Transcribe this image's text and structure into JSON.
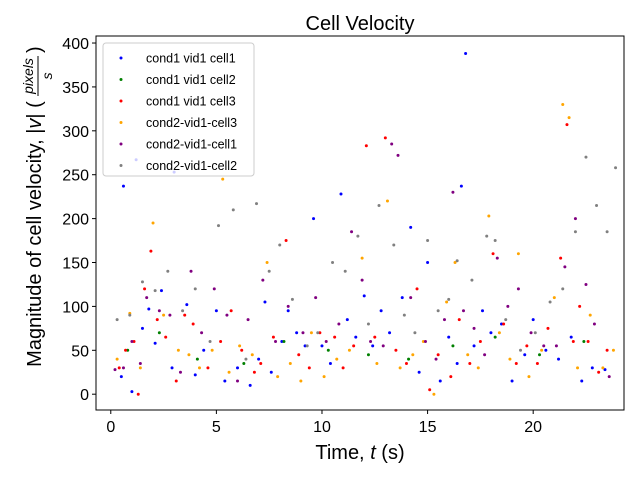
{
  "chart_data": {
    "type": "scatter",
    "title": "Cell Velocity",
    "xlabel_main": "Time, ",
    "xlabel_var": "t",
    "xlabel_unit": " (s)",
    "ylabel_main": "Magnitude of cell velocity, |",
    "ylabel_var": "v",
    "ylabel_close": "| (",
    "ylabel_frac_num": "pixels",
    "ylabel_frac_den": "s",
    "ylabel_end": ")",
    "xlim": [
      -0.7,
      24.3
    ],
    "ylim": [
      -18,
      408
    ],
    "xticks": [
      0,
      5,
      10,
      15,
      20
    ],
    "yticks": [
      0,
      50,
      100,
      150,
      200,
      250,
      300,
      350,
      400
    ],
    "legend_position": "upper-left",
    "series": [
      {
        "name": "cond1 vid1 cell1",
        "color": "#0000ff",
        "x": [
          0.5,
          0.6,
          1.0,
          1.2,
          1.5,
          1.8,
          2.1,
          2.4,
          2.9,
          3.0,
          3.6,
          4.0,
          4.4,
          5.0,
          5.4,
          6.0,
          6.6,
          7.0,
          7.3,
          7.6,
          8.1,
          8.4,
          8.8,
          9.2,
          9.6,
          10.0,
          10.4,
          10.9,
          11.2,
          11.6,
          12.0,
          12.4,
          12.8,
          13.2,
          13.8,
          14.2,
          14.6,
          15.0,
          15.6,
          16.0,
          16.4,
          16.6,
          16.8,
          17.2,
          17.6,
          18.0,
          18.5,
          19.0,
          19.6,
          20.0,
          20.6,
          21.2,
          21.8,
          22.3,
          22.8,
          23.4
        ],
        "y": [
          20,
          237,
          3,
          267,
          75,
          97,
          58,
          118,
          30,
          253,
          102,
          22,
          50,
          95,
          15,
          30,
          10,
          40,
          105,
          25,
          60,
          95,
          70,
          55,
          200,
          55,
          35,
          228,
          85,
          65,
          112,
          55,
          95,
          70,
          110,
          190,
          25,
          150,
          15,
          65,
          35,
          237,
          388,
          55,
          95,
          70,
          80,
          15,
          45,
          85,
          50,
          40,
          65,
          15,
          30,
          28
        ]
      },
      {
        "name": "cond1 vid1 cell2",
        "color": "#008000",
        "x": [
          0.8,
          2.3,
          4.1,
          6.3,
          8.2,
          10.3,
          12.2,
          14.1,
          16.2,
          18.2,
          20.3,
          22.4
        ],
        "y": [
          50,
          70,
          40,
          35,
          60,
          50,
          45,
          40,
          55,
          65,
          45,
          60
        ]
      },
      {
        "name": "cond1 vid1 cell3",
        "color": "#ff0000",
        "x": [
          0.4,
          0.7,
          1.1,
          1.3,
          1.6,
          1.9,
          2.2,
          2.6,
          3.1,
          3.5,
          3.9,
          4.6,
          5.2,
          5.7,
          6.2,
          6.8,
          7.1,
          7.7,
          8.3,
          8.9,
          9.4,
          9.9,
          10.6,
          11.0,
          11.5,
          12.1,
          12.5,
          13.0,
          13.5,
          14.0,
          14.5,
          15.1,
          15.5,
          16.1,
          16.5,
          17.0,
          17.5,
          18.1,
          18.6,
          19.2,
          19.7,
          20.2,
          20.7,
          21.3,
          21.6,
          21.9,
          22.2,
          22.6,
          23.1,
          23.5
        ],
        "y": [
          30,
          50,
          60,
          0,
          120,
          163,
          85,
          65,
          15,
          90,
          80,
          30,
          60,
          95,
          50,
          25,
          35,
          65,
          175,
          45,
          30,
          70,
          65,
          30,
          55,
          283,
          65,
          292,
          50,
          35,
          120,
          5,
          45,
          20,
          85,
          35,
          60,
          160,
          80,
          35,
          55,
          35,
          75,
          155,
          307,
          60,
          100,
          60,
          25,
          50
        ]
      },
      {
        "name": "cond2-vid1-cell3",
        "color": "#ffa500",
        "x": [
          0.3,
          0.9,
          1.4,
          2.0,
          2.5,
          3.2,
          3.7,
          4.2,
          4.8,
          5.3,
          5.6,
          6.1,
          6.7,
          7.4,
          7.9,
          8.5,
          9.0,
          9.5,
          10.1,
          10.7,
          11.3,
          11.9,
          12.6,
          13.1,
          13.7,
          14.3,
          14.8,
          15.3,
          15.9,
          16.3,
          16.9,
          17.4,
          17.9,
          18.4,
          18.9,
          19.3,
          19.8,
          20.4,
          21.0,
          21.4,
          21.7,
          22.1,
          22.7,
          23.3,
          23.8
        ],
        "y": [
          40,
          92,
          30,
          195,
          90,
          50,
          45,
          30,
          50,
          245,
          25,
          55,
          45,
          150,
          20,
          35,
          15,
          70,
          20,
          40,
          50,
          155,
          35,
          220,
          30,
          45,
          60,
          0,
          105,
          150,
          45,
          30,
          203,
          70,
          40,
          160,
          20,
          50,
          110,
          330,
          315,
          30,
          90,
          30,
          50
        ]
      },
      {
        "name": "cond2-vid1-cell1",
        "color": "#800080",
        "x": [
          0.2,
          0.6,
          1.0,
          1.4,
          1.7,
          2.3,
          2.8,
          3.3,
          3.8,
          4.3,
          4.9,
          5.5,
          6.0,
          6.5,
          7.2,
          7.8,
          8.4,
          9.1,
          9.7,
          10.2,
          10.8,
          11.4,
          11.9,
          12.3,
          12.9,
          13.3,
          13.6,
          14.2,
          14.9,
          15.4,
          15.8,
          16.2,
          16.7,
          17.2,
          17.7,
          18.3,
          18.8,
          19.3,
          19.9,
          20.5,
          21.1,
          21.5,
          22.0,
          22.5,
          22.9,
          23.6
        ],
        "y": [
          28,
          30,
          60,
          35,
          110,
          95,
          90,
          25,
          140,
          70,
          120,
          90,
          15,
          85,
          130,
          60,
          100,
          70,
          110,
          60,
          80,
          185,
          130,
          60,
          55,
          285,
          272,
          110,
          60,
          40,
          85,
          230,
          95,
          75,
          45,
          155,
          100,
          120,
          70,
          55,
          55,
          145,
          200,
          125,
          80,
          20
        ]
      },
      {
        "name": "cond2-vid1-cell2",
        "color": "#808080",
        "x": [
          0.3,
          0.9,
          1.5,
          2.1,
          2.7,
          3.4,
          4.0,
          4.7,
          5.1,
          5.8,
          6.4,
          6.9,
          7.5,
          8.0,
          8.6,
          9.3,
          9.8,
          10.5,
          11.1,
          11.7,
          12.2,
          12.7,
          13.4,
          13.9,
          14.4,
          15.0,
          15.5,
          16.0,
          16.4,
          17.1,
          17.8,
          18.2,
          18.7,
          19.4,
          20.1,
          20.8,
          21.4,
          22.0,
          22.5,
          23.0,
          23.5,
          23.9
        ],
        "y": [
          85,
          90,
          128,
          118,
          140,
          95,
          120,
          60,
          192,
          210,
          40,
          217,
          140,
          170,
          108,
          55,
          70,
          150,
          140,
          180,
          80,
          215,
          170,
          90,
          70,
          175,
          95,
          108,
          152,
          130,
          180,
          175,
          85,
          50,
          70,
          105,
          120,
          185,
          270,
          215,
          185,
          258
        ]
      }
    ]
  }
}
